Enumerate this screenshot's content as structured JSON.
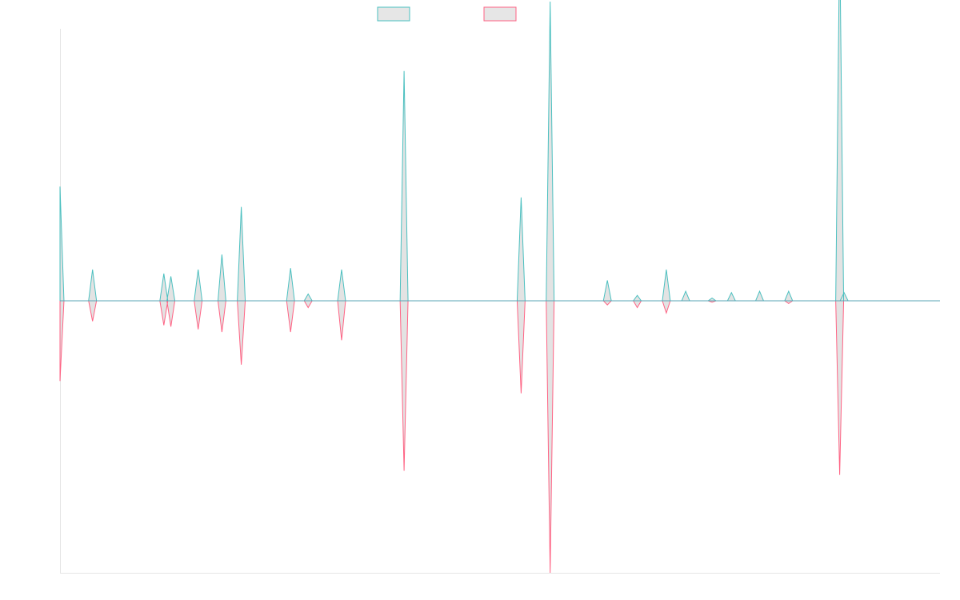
{
  "chart_data": {
    "type": "line",
    "title": "",
    "xlabel": "",
    "ylabel": "",
    "grid": false,
    "legend_position": "top-center",
    "ylim": [
      -100,
      100
    ],
    "spike_half_width": 0.45,
    "series": [
      {
        "color": "#4bc0c0",
        "fill": "rgba(220,220,220,0.8)",
        "direction": 1,
        "points": [
          {
            "x": 0,
            "v": 42
          },
          {
            "x": 3.7,
            "v": 11.5
          },
          {
            "x": 11.8,
            "v": 10
          },
          {
            "x": 12.6,
            "v": 9
          },
          {
            "x": 15.7,
            "v": 11.5
          },
          {
            "x": 18.4,
            "v": 17
          },
          {
            "x": 20.6,
            "v": 34.5
          },
          {
            "x": 26.2,
            "v": 12
          },
          {
            "x": 28.2,
            "v": 2.5
          },
          {
            "x": 32.0,
            "v": 11.5
          },
          {
            "x": 39.1,
            "v": 84.5
          },
          {
            "x": 52.4,
            "v": 38
          },
          {
            "x": 55.7,
            "v": 110
          },
          {
            "x": 62.2,
            "v": 7.5
          },
          {
            "x": 65.6,
            "v": 2
          },
          {
            "x": 68.9,
            "v": 11.5
          },
          {
            "x": 71.1,
            "v": 3.5
          },
          {
            "x": 74.1,
            "v": 1
          },
          {
            "x": 70.0,
            "v": 0
          },
          {
            "x": 76.3,
            "v": 3
          },
          {
            "x": 79.5,
            "v": 3.5
          },
          {
            "x": 82.8,
            "v": 3.5
          },
          {
            "x": 88.6,
            "v": 135
          },
          {
            "x": 89.1,
            "v": 3
          }
        ]
      },
      {
        "color": "#ff6384",
        "fill": "rgba(220,220,220,0.8)",
        "direction": -1,
        "points": [
          {
            "x": 0,
            "v": 29.5
          },
          {
            "x": 3.7,
            "v": 7.5
          },
          {
            "x": 11.8,
            "v": 9
          },
          {
            "x": 12.6,
            "v": 9.5
          },
          {
            "x": 15.7,
            "v": 10.5
          },
          {
            "x": 18.4,
            "v": 11.5
          },
          {
            "x": 20.6,
            "v": 23.5
          },
          {
            "x": 26.2,
            "v": 11.5
          },
          {
            "x": 28.2,
            "v": 2.5
          },
          {
            "x": 32.0,
            "v": 14.5
          },
          {
            "x": 39.1,
            "v": 62.5
          },
          {
            "x": 52.4,
            "v": 34
          },
          {
            "x": 55.7,
            "v": 100
          },
          {
            "x": 62.2,
            "v": 1.5
          },
          {
            "x": 65.6,
            "v": 2.5
          },
          {
            "x": 68.9,
            "v": 4.5
          },
          {
            "x": 74.1,
            "v": 0.5
          },
          {
            "x": 82.8,
            "v": 1
          },
          {
            "x": 88.6,
            "v": 64
          }
        ]
      }
    ],
    "x_range": [
      0,
      100
    ]
  }
}
